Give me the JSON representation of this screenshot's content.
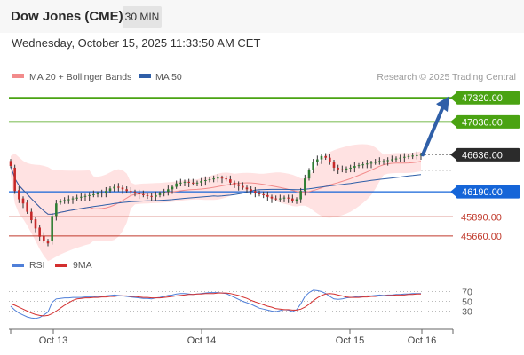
{
  "header": {
    "title": "Dow Jones (CME)",
    "timeframe": "30 MIN",
    "datetime": "Wednesday, October 15, 2025 11:33:50 AM CET"
  },
  "legend": {
    "items": [
      {
        "label": "MA 20 + Bollinger Bands",
        "color": "#f28b8b"
      },
      {
        "label": "MA 50",
        "color": "#2f5fa8"
      }
    ],
    "credit": "Research © 2025 Trading Central"
  },
  "colors": {
    "up": "#2e7d32",
    "down": "#c62828",
    "resistance": "#4aa312",
    "support": "#c0392b",
    "pivot": "#1565d8",
    "band_fill": "#ffe2e2",
    "ma20": "#f28b8b",
    "ma50": "#2f5fa8",
    "arrow": "#2f5fa8",
    "rsi": "#4f7fd8",
    "rsi_ma": "#d32f2f"
  },
  "chart_data": [
    {
      "type": "candlestick",
      "x_ticks": [
        "Oct 13",
        "Oct 14",
        "Oct 15",
        "Oct 16"
      ],
      "ylim": [
        45530,
        47450
      ],
      "last_price": 46636.0,
      "levels": [
        {
          "value": 47320.0,
          "label": "47320.00",
          "kind": "resistance"
        },
        {
          "value": 47030.0,
          "label": "47030.00",
          "kind": "resistance"
        },
        {
          "value": 46636.0,
          "label": "46636.00",
          "kind": "last"
        },
        {
          "value": 46190.0,
          "label": "46190.00",
          "kind": "pivot"
        },
        {
          "value": 45890.0,
          "label": "45890.00",
          "kind": "support"
        },
        {
          "value": 45660.0,
          "label": "45660.00",
          "kind": "support"
        }
      ],
      "closes": [
        46500,
        46200,
        46100,
        46050,
        45950,
        45850,
        45750,
        45650,
        45600,
        45570,
        45900,
        46050,
        46080,
        46090,
        46100,
        46110,
        46120,
        46130,
        46140,
        46150,
        46160,
        46170,
        46180,
        46200,
        46230,
        46250,
        46240,
        46220,
        46200,
        46190,
        46180,
        46160,
        46150,
        46140,
        46130,
        46150,
        46170,
        46190,
        46220,
        46250,
        46290,
        46300,
        46310,
        46300,
        46290,
        46300,
        46320,
        46330,
        46340,
        46350,
        46360,
        46350,
        46340,
        46300,
        46280,
        46260,
        46240,
        46220,
        46200,
        46180,
        46160,
        46150,
        46130,
        46110,
        46100,
        46110,
        46120,
        46110,
        46080,
        46100,
        46200,
        46350,
        46450,
        46550,
        46580,
        46620,
        46600,
        46550,
        46480,
        46460,
        46450,
        46470,
        46480,
        46500,
        46510,
        46520,
        46530,
        46540,
        46550,
        46560,
        46560,
        46570,
        46580,
        46590,
        46600,
        46610,
        46620,
        46625,
        46630,
        46636
      ],
      "opens": [
        46560,
        46480,
        46210,
        46110,
        46060,
        45950,
        45860,
        45760,
        45660,
        45600,
        45600,
        45900,
        46060,
        46080,
        46090,
        46100,
        46110,
        46120,
        46130,
        46140,
        46150,
        46160,
        46170,
        46180,
        46200,
        46230,
        46250,
        46240,
        46220,
        46200,
        46190,
        46180,
        46160,
        46150,
        46140,
        46130,
        46150,
        46170,
        46190,
        46220,
        46250,
        46290,
        46300,
        46310,
        46300,
        46290,
        46300,
        46320,
        46330,
        46340,
        46350,
        46360,
        46350,
        46340,
        46300,
        46280,
        46260,
        46240,
        46220,
        46200,
        46180,
        46160,
        46150,
        46130,
        46110,
        46100,
        46110,
        46120,
        46110,
        46080,
        46100,
        46200,
        46350,
        46450,
        46550,
        46580,
        46620,
        46600,
        46550,
        46480,
        46460,
        46450,
        46470,
        46480,
        46500,
        46510,
        46520,
        46530,
        46540,
        46550,
        46560,
        46560,
        46570,
        46580,
        46590,
        46600,
        46610,
        46620,
        46625,
        46630
      ]
    },
    {
      "type": "line",
      "series": [
        {
          "name": "RSI"
        },
        {
          "name": "9MA"
        }
      ],
      "ylim": [
        0,
        100
      ],
      "y_ticks": [
        70,
        50,
        30
      ],
      "rsi": [
        40,
        32,
        26,
        22,
        18,
        16,
        15,
        17,
        22,
        28,
        48,
        55,
        56,
        57,
        57,
        58,
        58,
        58,
        59,
        59,
        59,
        60,
        60,
        61,
        62,
        63,
        62,
        61,
        60,
        59,
        58,
        57,
        56,
        56,
        55,
        57,
        58,
        60,
        62,
        63,
        65,
        66,
        66,
        65,
        64,
        65,
        66,
        67,
        68,
        68,
        68,
        67,
        66,
        62,
        58,
        54,
        50,
        47,
        44,
        40,
        36,
        34,
        32,
        30,
        29,
        31,
        33,
        32,
        29,
        33,
        45,
        60,
        68,
        73,
        72,
        70,
        66,
        60,
        55,
        54,
        55,
        57,
        58,
        59,
        60,
        60,
        61,
        61,
        62,
        63,
        62,
        63,
        63,
        64,
        64,
        65,
        65,
        66,
        66,
        66
      ],
      "ma9": [
        45,
        42,
        38,
        34,
        30,
        26,
        23,
        21,
        20,
        21,
        25,
        30,
        36,
        42,
        47,
        52,
        55,
        56,
        57,
        57,
        58,
        58,
        59,
        59,
        60,
        60,
        61,
        61,
        61,
        60,
        60,
        59,
        58,
        58,
        57,
        57,
        57,
        58,
        59,
        60,
        61,
        62,
        63,
        64,
        64,
        65,
        65,
        66,
        66,
        66,
        67,
        67,
        67,
        66,
        64,
        62,
        59,
        56,
        52,
        49,
        46,
        43,
        40,
        38,
        35,
        34,
        33,
        33,
        32,
        32,
        34,
        38,
        44,
        51,
        57,
        62,
        65,
        66,
        65,
        63,
        61,
        59,
        58,
        58,
        58,
        59,
        59,
        60,
        60,
        61,
        61,
        62,
        62,
        63,
        63,
        63,
        64,
        64,
        65,
        65
      ]
    }
  ]
}
